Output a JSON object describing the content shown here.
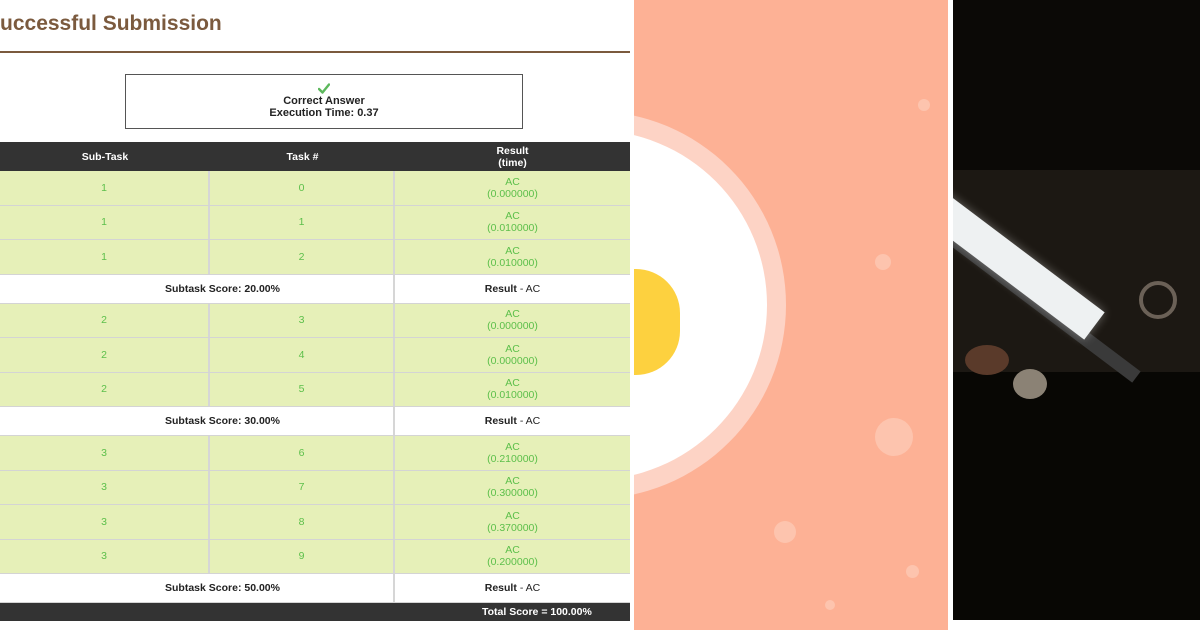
{
  "page": {
    "title": "Successful Submission"
  },
  "status": {
    "icon": "check-icon",
    "icon_color": "#5cb85c",
    "answer": "Correct Answer",
    "execution_time": "Execution Time: 0.37"
  },
  "table": {
    "headers": {
      "subtask": "Sub-Task",
      "task": "Task #",
      "result_line1": "Result",
      "result_line2": "(time)"
    },
    "groups": [
      {
        "rows": [
          {
            "subtask": "1",
            "task": "0",
            "result": "AC",
            "time": "(0.000000)"
          },
          {
            "subtask": "1",
            "task": "1",
            "result": "AC",
            "time": "(0.010000)"
          },
          {
            "subtask": "1",
            "task": "2",
            "result": "AC",
            "time": "(0.010000)"
          }
        ],
        "score": "Subtask Score: 20.00%",
        "result_label": "Result",
        "result_value": "- AC"
      },
      {
        "rows": [
          {
            "subtask": "2",
            "task": "3",
            "result": "AC",
            "time": "(0.000000)"
          },
          {
            "subtask": "2",
            "task": "4",
            "result": "AC",
            "time": "(0.000000)"
          },
          {
            "subtask": "2",
            "task": "5",
            "result": "AC",
            "time": "(0.010000)"
          }
        ],
        "score": "Subtask Score: 30.00%",
        "result_label": "Result",
        "result_value": "- AC"
      },
      {
        "rows": [
          {
            "subtask": "3",
            "task": "6",
            "result": "AC",
            "time": "(0.210000)"
          },
          {
            "subtask": "3",
            "task": "7",
            "result": "AC",
            "time": "(0.300000)"
          },
          {
            "subtask": "3",
            "task": "8",
            "result": "AC",
            "time": "(0.370000)"
          },
          {
            "subtask": "3",
            "task": "9",
            "result": "AC",
            "time": "(0.200000)"
          }
        ],
        "score": "Subtask Score: 50.00%",
        "result_label": "Result",
        "result_value": "- AC"
      }
    ],
    "total": "Total Score = 100.00%"
  },
  "colors": {
    "title": "#7b5a3e",
    "header_bg": "#333333",
    "row_bg": "#e6f0b8",
    "ac_text": "#5cbf4a",
    "illustration_bg": "#fdb195",
    "yolk": "#fdd13f"
  }
}
